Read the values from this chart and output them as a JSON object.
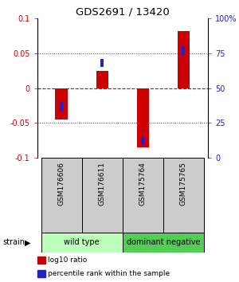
{
  "title": "GDS2691 / 13420",
  "samples": [
    "GSM176606",
    "GSM176611",
    "GSM175764",
    "GSM175765"
  ],
  "log10_ratio": [
    -0.045,
    0.025,
    -0.085,
    0.082
  ],
  "percentile_rank": [
    37,
    68,
    12,
    77
  ],
  "ylim_left": [
    -0.1,
    0.1
  ],
  "ylim_right": [
    0,
    100
  ],
  "yticks_left": [
    -0.1,
    -0.05,
    0,
    0.05,
    0.1
  ],
  "yticks_right": [
    0,
    25,
    50,
    75,
    100
  ],
  "ytick_labels_left": [
    "-0.1",
    "-0.05",
    "0",
    "0.05",
    "0.1"
  ],
  "ytick_labels_right": [
    "0",
    "25",
    "50",
    "75",
    "100%"
  ],
  "hlines_dotted": [
    -0.05,
    0.05
  ],
  "hline_zero": 0,
  "red_bar_width": 0.3,
  "blue_bar_width": 0.08,
  "red_color": "#cc0000",
  "blue_color": "#2222cc",
  "zero_line_color": "#cc0000",
  "dot_line_color": "#444444",
  "groups": [
    {
      "label": "wild type",
      "indices": [
        0,
        1
      ],
      "color": "#bbffbb"
    },
    {
      "label": "dominant negative",
      "indices": [
        2,
        3
      ],
      "color": "#55cc55"
    }
  ],
  "sample_box_color": "#cccccc",
  "legend_items": [
    {
      "label": "log10 ratio",
      "color": "#cc0000"
    },
    {
      "label": "percentile rank within the sample",
      "color": "#2222cc"
    }
  ],
  "strain_label": "strain",
  "bg_color": "#ffffff",
  "left_color": "#cc0000",
  "right_color": "#2222cc",
  "spine_color": "#000000"
}
